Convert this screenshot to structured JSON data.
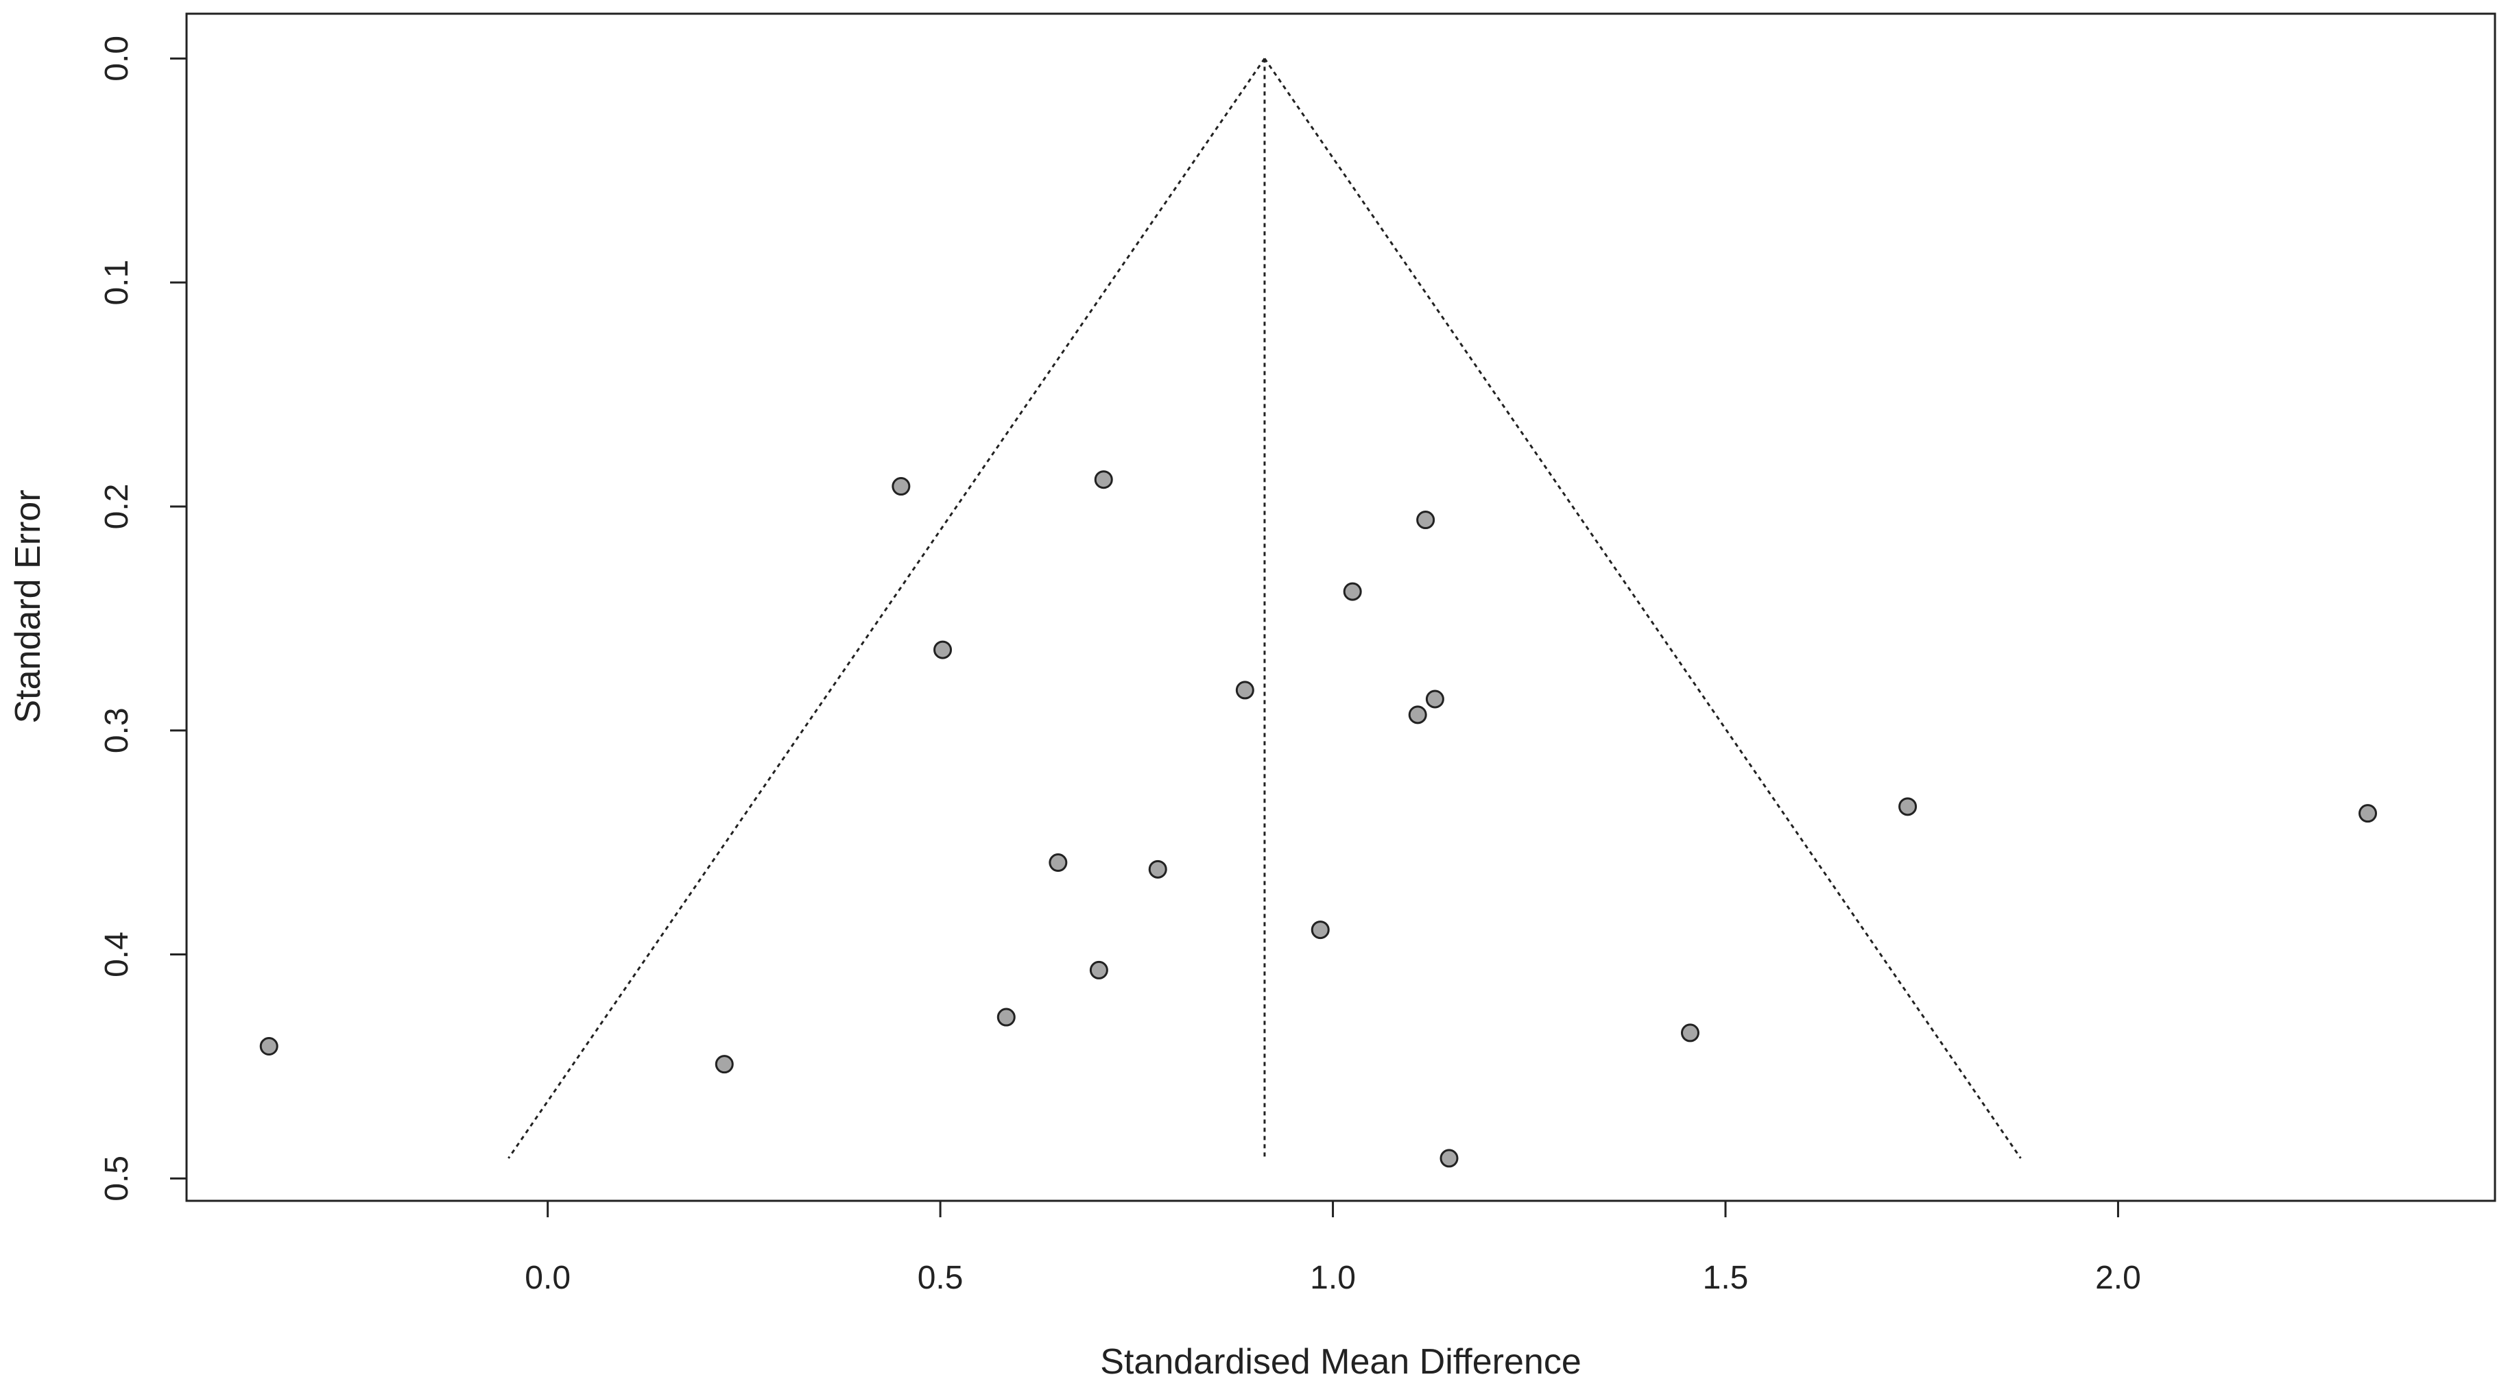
{
  "chart_data": {
    "type": "scatter",
    "subtype": "funnel",
    "xlabel": "Standardised Mean Difference",
    "ylabel": "Standard Error",
    "xlim": [
      -0.46,
      2.48
    ],
    "ylim": [
      0.51,
      -0.02
    ],
    "y_reversed": true,
    "x_ticks": [
      0.0,
      0.5,
      1.0,
      1.5,
      2.0
    ],
    "x_tick_labels": [
      "0.0",
      "0.5",
      "1.0",
      "1.5",
      "2.0"
    ],
    "y_ticks": [
      0.0,
      0.1,
      0.2,
      0.3,
      0.4,
      0.5
    ],
    "y_tick_labels": [
      "0.0",
      "0.1",
      "0.2",
      "0.3",
      "0.4",
      "0.5"
    ],
    "grid": false,
    "legend": "none",
    "pooled_estimate": 0.913,
    "funnel": {
      "apex": [
        0.913,
        0.0
      ],
      "left_bottom": [
        -0.05,
        0.491
      ],
      "right_bottom": [
        1.876,
        0.491
      ],
      "line_style": "dotted"
    },
    "points": [
      {
        "x": -0.355,
        "y": 0.441
      },
      {
        "x": 0.225,
        "y": 0.449
      },
      {
        "x": 0.45,
        "y": 0.191
      },
      {
        "x": 0.503,
        "y": 0.264
      },
      {
        "x": 0.584,
        "y": 0.428
      },
      {
        "x": 0.65,
        "y": 0.359
      },
      {
        "x": 0.702,
        "y": 0.407
      },
      {
        "x": 0.708,
        "y": 0.188
      },
      {
        "x": 0.777,
        "y": 0.362
      },
      {
        "x": 0.888,
        "y": 0.282
      },
      {
        "x": 0.984,
        "y": 0.389
      },
      {
        "x": 1.025,
        "y": 0.238
      },
      {
        "x": 1.108,
        "y": 0.293
      },
      {
        "x": 1.118,
        "y": 0.206
      },
      {
        "x": 1.13,
        "y": 0.286
      },
      {
        "x": 1.148,
        "y": 0.491
      },
      {
        "x": 1.455,
        "y": 0.435
      },
      {
        "x": 1.732,
        "y": 0.334
      },
      {
        "x": 2.318,
        "y": 0.337
      }
    ],
    "colors": {
      "point_fill": "#a6a6a6",
      "point_stroke": "#222222",
      "axis": "#222222",
      "funnel_line": "#222222"
    }
  }
}
